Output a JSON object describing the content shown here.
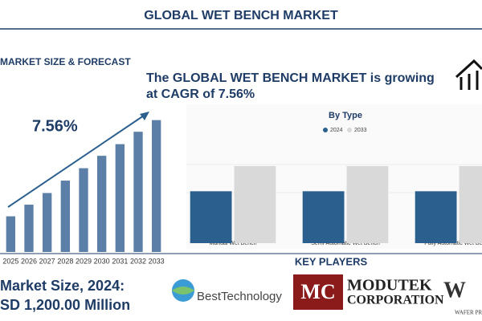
{
  "header": {
    "title": "GLOBAL WET BENCH MARKET"
  },
  "forecast": {
    "heading": "MARKET SIZE & FORECAST",
    "cagr": "7.56%"
  },
  "headline": [
    "The GLOBAL WET BENCH MARKET is growing",
    "at CAGR of 7.56%"
  ],
  "chart_data": [
    {
      "type": "bar",
      "categories": [
        "2025",
        "2026",
        "2027",
        "2028",
        "2029",
        "2030",
        "2031",
        "2032",
        "2033"
      ],
      "values": [
        46,
        61,
        76,
        92,
        108,
        124,
        139,
        155,
        170
      ],
      "color": "#5b7fa6",
      "ylim": [
        0,
        180
      ]
    },
    {
      "type": "bar",
      "title": "By Type",
      "categories": [
        "Manual Wet Bench",
        "Semi-Automatic Wet Bench",
        "Fully Automatic Wet Bench"
      ],
      "series": [
        {
          "name": "2024",
          "color": "#2b5f8e",
          "values": [
            66,
            66,
            66
          ]
        },
        {
          "name": "2033",
          "color": "#d9d9d9",
          "values": [
            98,
            98,
            98
          ]
        }
      ],
      "ylim": [
        0,
        100
      ]
    }
  ],
  "market_size": {
    "label": "Market Size, 2024:",
    "value": "SD 1,200.00 Million"
  },
  "key_players": {
    "title": "KEY PLAYERS",
    "companies": [
      "BestTechnology",
      "MODUTEK",
      "CORPORATION",
      "WAFER PRO"
    ]
  }
}
